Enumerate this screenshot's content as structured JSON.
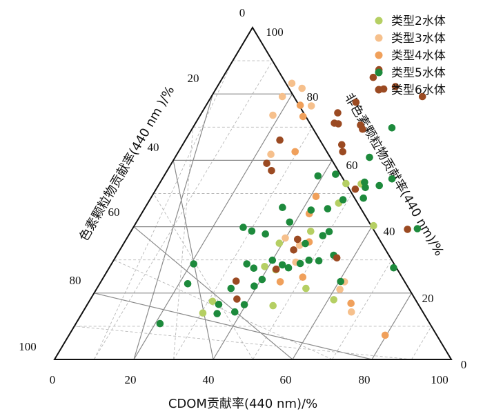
{
  "chart_data": {
    "type": "scatter",
    "subtype": "ternary",
    "axes": {
      "bottom": {
        "label": "CDOM贡献率(440 nm)/%",
        "ticks": [
          "0",
          "20",
          "40",
          "60",
          "80",
          "100"
        ]
      },
      "left": {
        "label": "色素颗粒物贡献率(440 nm )/%",
        "ticks": [
          "0",
          "20",
          "40",
          "60",
          "80",
          "100"
        ]
      },
      "right": {
        "label": "非色素颗粒物贡献率(440 nm)/%",
        "ticks": [
          "100",
          "80",
          "60",
          "40",
          "20",
          "0"
        ]
      }
    },
    "grid": true,
    "legend_position": "top-right",
    "series": [
      {
        "name": "类型2水体",
        "color": "#b5cf63",
        "points": [
          {
            "cdom": 30.4,
            "nap": 14.0
          },
          {
            "cdom": 31.1,
            "nap": 17.5
          },
          {
            "cdom": 47.0,
            "nap": 16.2
          },
          {
            "cdom": 52.7,
            "nap": 21.4
          },
          {
            "cdom": 61.4,
            "nap": 18.0
          },
          {
            "cdom": 39.0,
            "nap": 28.0
          },
          {
            "cdom": 42.3,
            "nap": 27.0
          },
          {
            "cdom": 39.2,
            "nap": 35.0
          },
          {
            "cdom": 48.1,
            "nap": 47.1
          },
          {
            "cdom": 50.9,
            "nap": 52.9
          },
          {
            "cdom": 47.0,
            "nap": 53.0
          },
          {
            "cdom": 60.3,
            "nap": 40.3
          },
          {
            "cdom": 45.3,
            "nap": 38.6
          }
        ]
      },
      {
        "name": "类型3水体",
        "color": "#f6c08c",
        "points": [
          {
            "cdom": 26.6,
            "nap": 76.4
          },
          {
            "cdom": 18.3,
            "nap": 83.2
          },
          {
            "cdom": 21.6,
            "nap": 81.7
          },
          {
            "cdom": 17.9,
            "nap": 79.2
          },
          {
            "cdom": 18.3,
            "nap": 73.6
          },
          {
            "cdom": 23.7,
            "nap": 61.8
          },
          {
            "cdom": 39.9,
            "nap": 36.6
          },
          {
            "cdom": 46.2,
            "nap": 29.3
          },
          {
            "cdom": 44.6,
            "nap": 34.4
          },
          {
            "cdom": 61.4,
            "nap": 21.1
          },
          {
            "cdom": 67.7,
            "nap": 14.3
          },
          {
            "cdom": 61.4,
            "nap": 23.4
          }
        ]
      },
      {
        "name": "类型4水体",
        "color": "#f0a05b",
        "points": [
          {
            "cdom": 23.7,
            "nap": 76.6
          },
          {
            "cdom": 26.1,
            "nap": 73.2
          },
          {
            "cdom": 29.4,
            "nap": 62.6
          },
          {
            "cdom": 41.4,
            "nap": 49.1
          },
          {
            "cdom": 42.3,
            "nap": 43.9
          },
          {
            "cdom": 45.2,
            "nap": 23.4
          },
          {
            "cdom": 50.2,
            "nap": 24.8
          },
          {
            "cdom": 66.3,
            "nap": 16.9
          },
          {
            "cdom": 79.7,
            "nap": 7.3
          },
          {
            "cdom": 46.5,
            "nap": 35.4
          }
        ]
      },
      {
        "name": "类型5水体",
        "color": "#1d8a3c",
        "points": [
          {
            "cdom": 21.2,
            "nap": 10.8
          },
          {
            "cdom": 34.1,
            "nap": 13.8
          },
          {
            "cdom": 33.1,
            "nap": 16.6
          },
          {
            "cdom": 38.3,
            "nap": 14.3
          },
          {
            "cdom": 39.6,
            "nap": 16.5
          },
          {
            "cdom": 20.7,
            "nap": 28.8
          },
          {
            "cdom": 22.2,
            "nap": 22.8
          },
          {
            "cdom": 33.8,
            "nap": 21.4
          },
          {
            "cdom": 39.3,
            "nap": 22.1
          },
          {
            "cdom": 40.3,
            "nap": 24.1
          },
          {
            "cdom": 34.1,
            "nap": 28.8
          },
          {
            "cdom": 36.5,
            "nap": 27.5
          },
          {
            "cdom": 40.0,
            "nap": 29.9
          },
          {
            "cdom": 43.2,
            "nap": 28.5
          },
          {
            "cdom": 45.2,
            "nap": 27.6
          },
          {
            "cdom": 47.5,
            "nap": 28.9
          },
          {
            "cdom": 49.2,
            "nap": 29.9
          },
          {
            "cdom": 51.8,
            "nap": 29.7
          },
          {
            "cdom": 54.7,
            "nap": 31.4
          },
          {
            "cdom": 60.4,
            "nap": 23.5
          },
          {
            "cdom": 34.3,
            "nap": 37.8
          },
          {
            "cdom": 38.6,
            "nap": 41.4
          },
          {
            "cdom": 45.8,
            "nap": 34.9
          },
          {
            "cdom": 49.0,
            "nap": 37.3
          },
          {
            "cdom": 50.0,
            "nap": 38.5
          },
          {
            "cdom": 27.7,
            "nap": 39.8
          },
          {
            "cdom": 30.4,
            "nap": 38.7
          },
          {
            "cdom": 34.6,
            "nap": 45.8
          },
          {
            "cdom": 42.2,
            "nap": 45.0
          },
          {
            "cdom": 46.2,
            "nap": 45.4
          },
          {
            "cdom": 48.7,
            "nap": 48.1
          },
          {
            "cdom": 51.5,
            "nap": 53.4
          },
          {
            "cdom": 52.5,
            "nap": 51.8
          },
          {
            "cdom": 53.6,
            "nap": 48.6
          },
          {
            "cdom": 57.9,
            "nap": 54.4
          },
          {
            "cdom": 38.8,
            "nap": 55.3
          },
          {
            "cdom": 43.0,
            "nap": 55.8
          },
          {
            "cdom": 49.0,
            "nap": 60.9
          },
          {
            "cdom": 55.7,
            "nap": 52.4
          },
          {
            "cdom": 50.2,
            "nap": 69.8
          },
          {
            "cdom": 71.7,
            "nap": 27.6
          },
          {
            "cdom": 71.8,
            "nap": 39.4
          }
        ]
      },
      {
        "name": "类型6水体",
        "color": "#9b4a22",
        "points": [
          {
            "cdom": 38.2,
            "nap": 87.3
          },
          {
            "cdom": 37.9,
            "nap": 85.0
          },
          {
            "cdom": 42.3,
            "nap": 81.5
          },
          {
            "cdom": 44.9,
            "nap": 82.2
          },
          {
            "cdom": 53.2,
            "nap": 79.2
          },
          {
            "cdom": 37.3,
            "nap": 77.5
          },
          {
            "cdom": 34.3,
            "nap": 74.3
          },
          {
            "cdom": 35.0,
            "nap": 71.2
          },
          {
            "cdom": 36.1,
            "nap": 71.0
          },
          {
            "cdom": 41.9,
            "nap": 70.6
          },
          {
            "cdom": 43.0,
            "nap": 69.4
          },
          {
            "cdom": 23.8,
            "nap": 66.1
          },
          {
            "cdom": 40.1,
            "nap": 64.7
          },
          {
            "cdom": 41.4,
            "nap": 62.6
          },
          {
            "cdom": 24.0,
            "nap": 59.1
          },
          {
            "cdom": 26.3,
            "nap": 56.9
          },
          {
            "cdom": 50.2,
            "nap": 51.3
          },
          {
            "cdom": 69.4,
            "nap": 39.2
          },
          {
            "cdom": 43.2,
            "nap": 36.2
          },
          {
            "cdom": 43.8,
            "nap": 33.0
          },
          {
            "cdom": 55.9,
            "nap": 30.6
          },
          {
            "cdom": 42.3,
            "nap": 27.2
          },
          {
            "cdom": 36.9,
            "nap": 18.2
          },
          {
            "cdom": 34.0,
            "nap": 23.6
          }
        ]
      }
    ]
  }
}
